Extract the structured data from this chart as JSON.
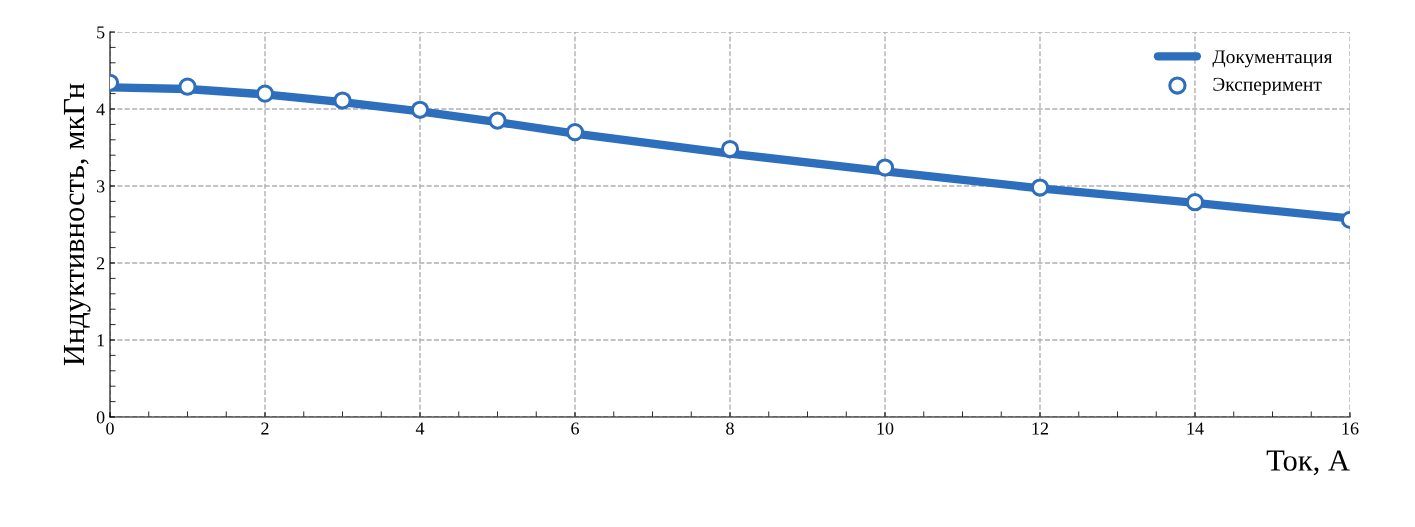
{
  "chart_data": {
    "type": "line",
    "xlabel": "Ток, А",
    "ylabel": "Индуктивность, мкГн",
    "xlim": [
      0,
      16
    ],
    "xticks": [
      0,
      2,
      4,
      6,
      8,
      10,
      12,
      14,
      16
    ],
    "ylim": [
      0,
      5
    ],
    "yticks": [
      0,
      1,
      2,
      3,
      4,
      5
    ],
    "grid": true,
    "legend": "top right",
    "series": [
      {
        "name": "Документация",
        "color": "#2e6fbd",
        "marker": "none",
        "line_style": "solid",
        "x": [
          0,
          1,
          2,
          3,
          4,
          5,
          6,
          8,
          10,
          12,
          14,
          16
        ],
        "values": [
          4.28,
          4.26,
          4.19,
          4.09,
          3.97,
          3.83,
          3.68,
          3.42,
          3.19,
          2.97,
          2.78,
          2.58
        ]
      },
      {
        "name": "Эксперимент",
        "type": "scatter",
        "color": "#2e6fbd",
        "marker": "circle",
        "x": [
          0,
          1,
          2,
          3,
          4,
          5,
          6,
          8,
          10,
          12,
          14,
          16
        ],
        "values": [
          4.34,
          4.29,
          4.2,
          4.11,
          3.99,
          3.85,
          3.7,
          3.48,
          3.24,
          2.98,
          2.79,
          2.56
        ]
      }
    ]
  }
}
